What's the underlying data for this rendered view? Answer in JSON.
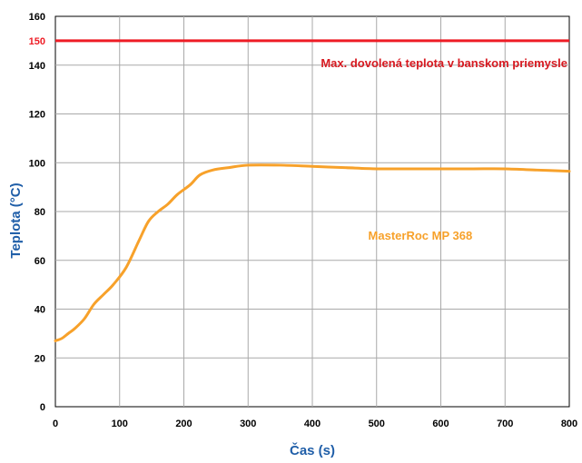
{
  "chart_data": {
    "type": "line",
    "title": "",
    "xlabel": "Čas (s)",
    "ylabel": "Teplota (°C)",
    "xlim": [
      0,
      800
    ],
    "ylim": [
      0,
      160
    ],
    "x_ticks": [
      0,
      100,
      200,
      300,
      400,
      500,
      600,
      700,
      800
    ],
    "x_tick_labels": [
      "0",
      "100",
      "200",
      "300",
      "400",
      "500",
      "600",
      "700",
      "800"
    ],
    "y_ticks": [
      0,
      20,
      40,
      60,
      80,
      100,
      120,
      140,
      160
    ],
    "y_tick_labels": [
      "0",
      "20",
      "40",
      "60",
      "80",
      "100",
      "120",
      "140",
      "160"
    ],
    "grid": true,
    "series": [
      {
        "name": "MasterRoc MP 368",
        "color": "#f7a12a",
        "x": [
          0,
          10,
          20,
          30,
          45,
          60,
          75,
          90,
          110,
          130,
          145,
          160,
          175,
          190,
          210,
          225,
          245,
          270,
          300,
          350,
          400,
          450,
          500,
          550,
          600,
          650,
          700,
          750,
          800
        ],
        "y": [
          27,
          28,
          30,
          32,
          36,
          42,
          46,
          50,
          57,
          68,
          76,
          80,
          83,
          87,
          91,
          95,
          97,
          98,
          99,
          99,
          98.5,
          98,
          97.5,
          97.5,
          97.5,
          97.5,
          97.5,
          97,
          96.5
        ]
      }
    ],
    "reference_line": {
      "y": 150,
      "label": "Max. dovolená teplota v banskom priemysle",
      "tick_label": "150",
      "color": "#ee1c25"
    }
  }
}
